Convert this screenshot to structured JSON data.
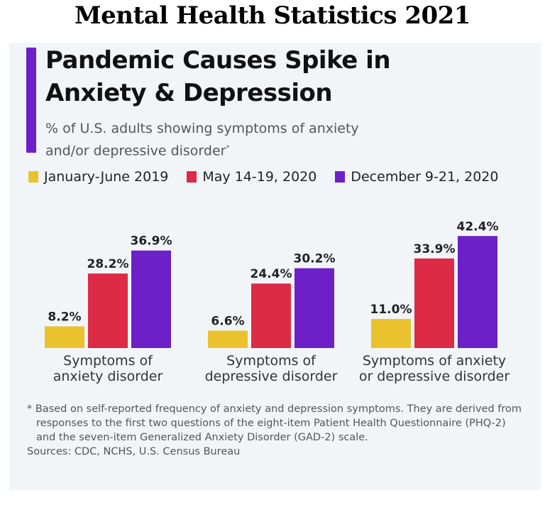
{
  "banner": "Mental Health Statistics 2021",
  "chart_data": {
    "type": "bar",
    "title": "Pandemic Causes Spike in Anxiety & Depression",
    "subtitle": "% of U.S. adults showing symptoms of anxiety and/or depressive disorder",
    "subtitle_mark": "*",
    "categories": [
      [
        "Symptoms of",
        "anxiety disorder"
      ],
      [
        "Symptoms of",
        "depressive disorder"
      ],
      [
        "Symptoms of anxiety",
        "or depressive disorder"
      ]
    ],
    "series": [
      {
        "name": "January-June 2019",
        "color": "#e9c22d",
        "values": [
          8.2,
          6.6,
          11.0
        ],
        "labels": [
          "8.2%",
          "6.6%",
          "11.0%"
        ]
      },
      {
        "name": "May 14-19, 2020",
        "color": "#dd2a45",
        "values": [
          28.2,
          24.4,
          33.9
        ],
        "labels": [
          "28.2%",
          "24.4%",
          "33.9%"
        ]
      },
      {
        "name": "December 9-21, 2020",
        "color": "#6d1fc8",
        "values": [
          36.9,
          30.2,
          42.4
        ],
        "labels": [
          "36.9%",
          "30.2%",
          "42.4%"
        ]
      }
    ],
    "ylim": [
      0,
      45
    ],
    "grid": false,
    "legend_position": "top-left",
    "xlabel": "",
    "ylabel": ""
  },
  "footnote": "* Based on self-reported frequency of anxiety and depression symptoms. They are derived from responses to the first two questions of the eight-item Patient Health Questionnaire (PHQ-2) and the seven-item Generalized Anxiety Disorder (GAD-2) scale.",
  "sources": "Sources: CDC, NCHS, U.S. Census Bureau"
}
